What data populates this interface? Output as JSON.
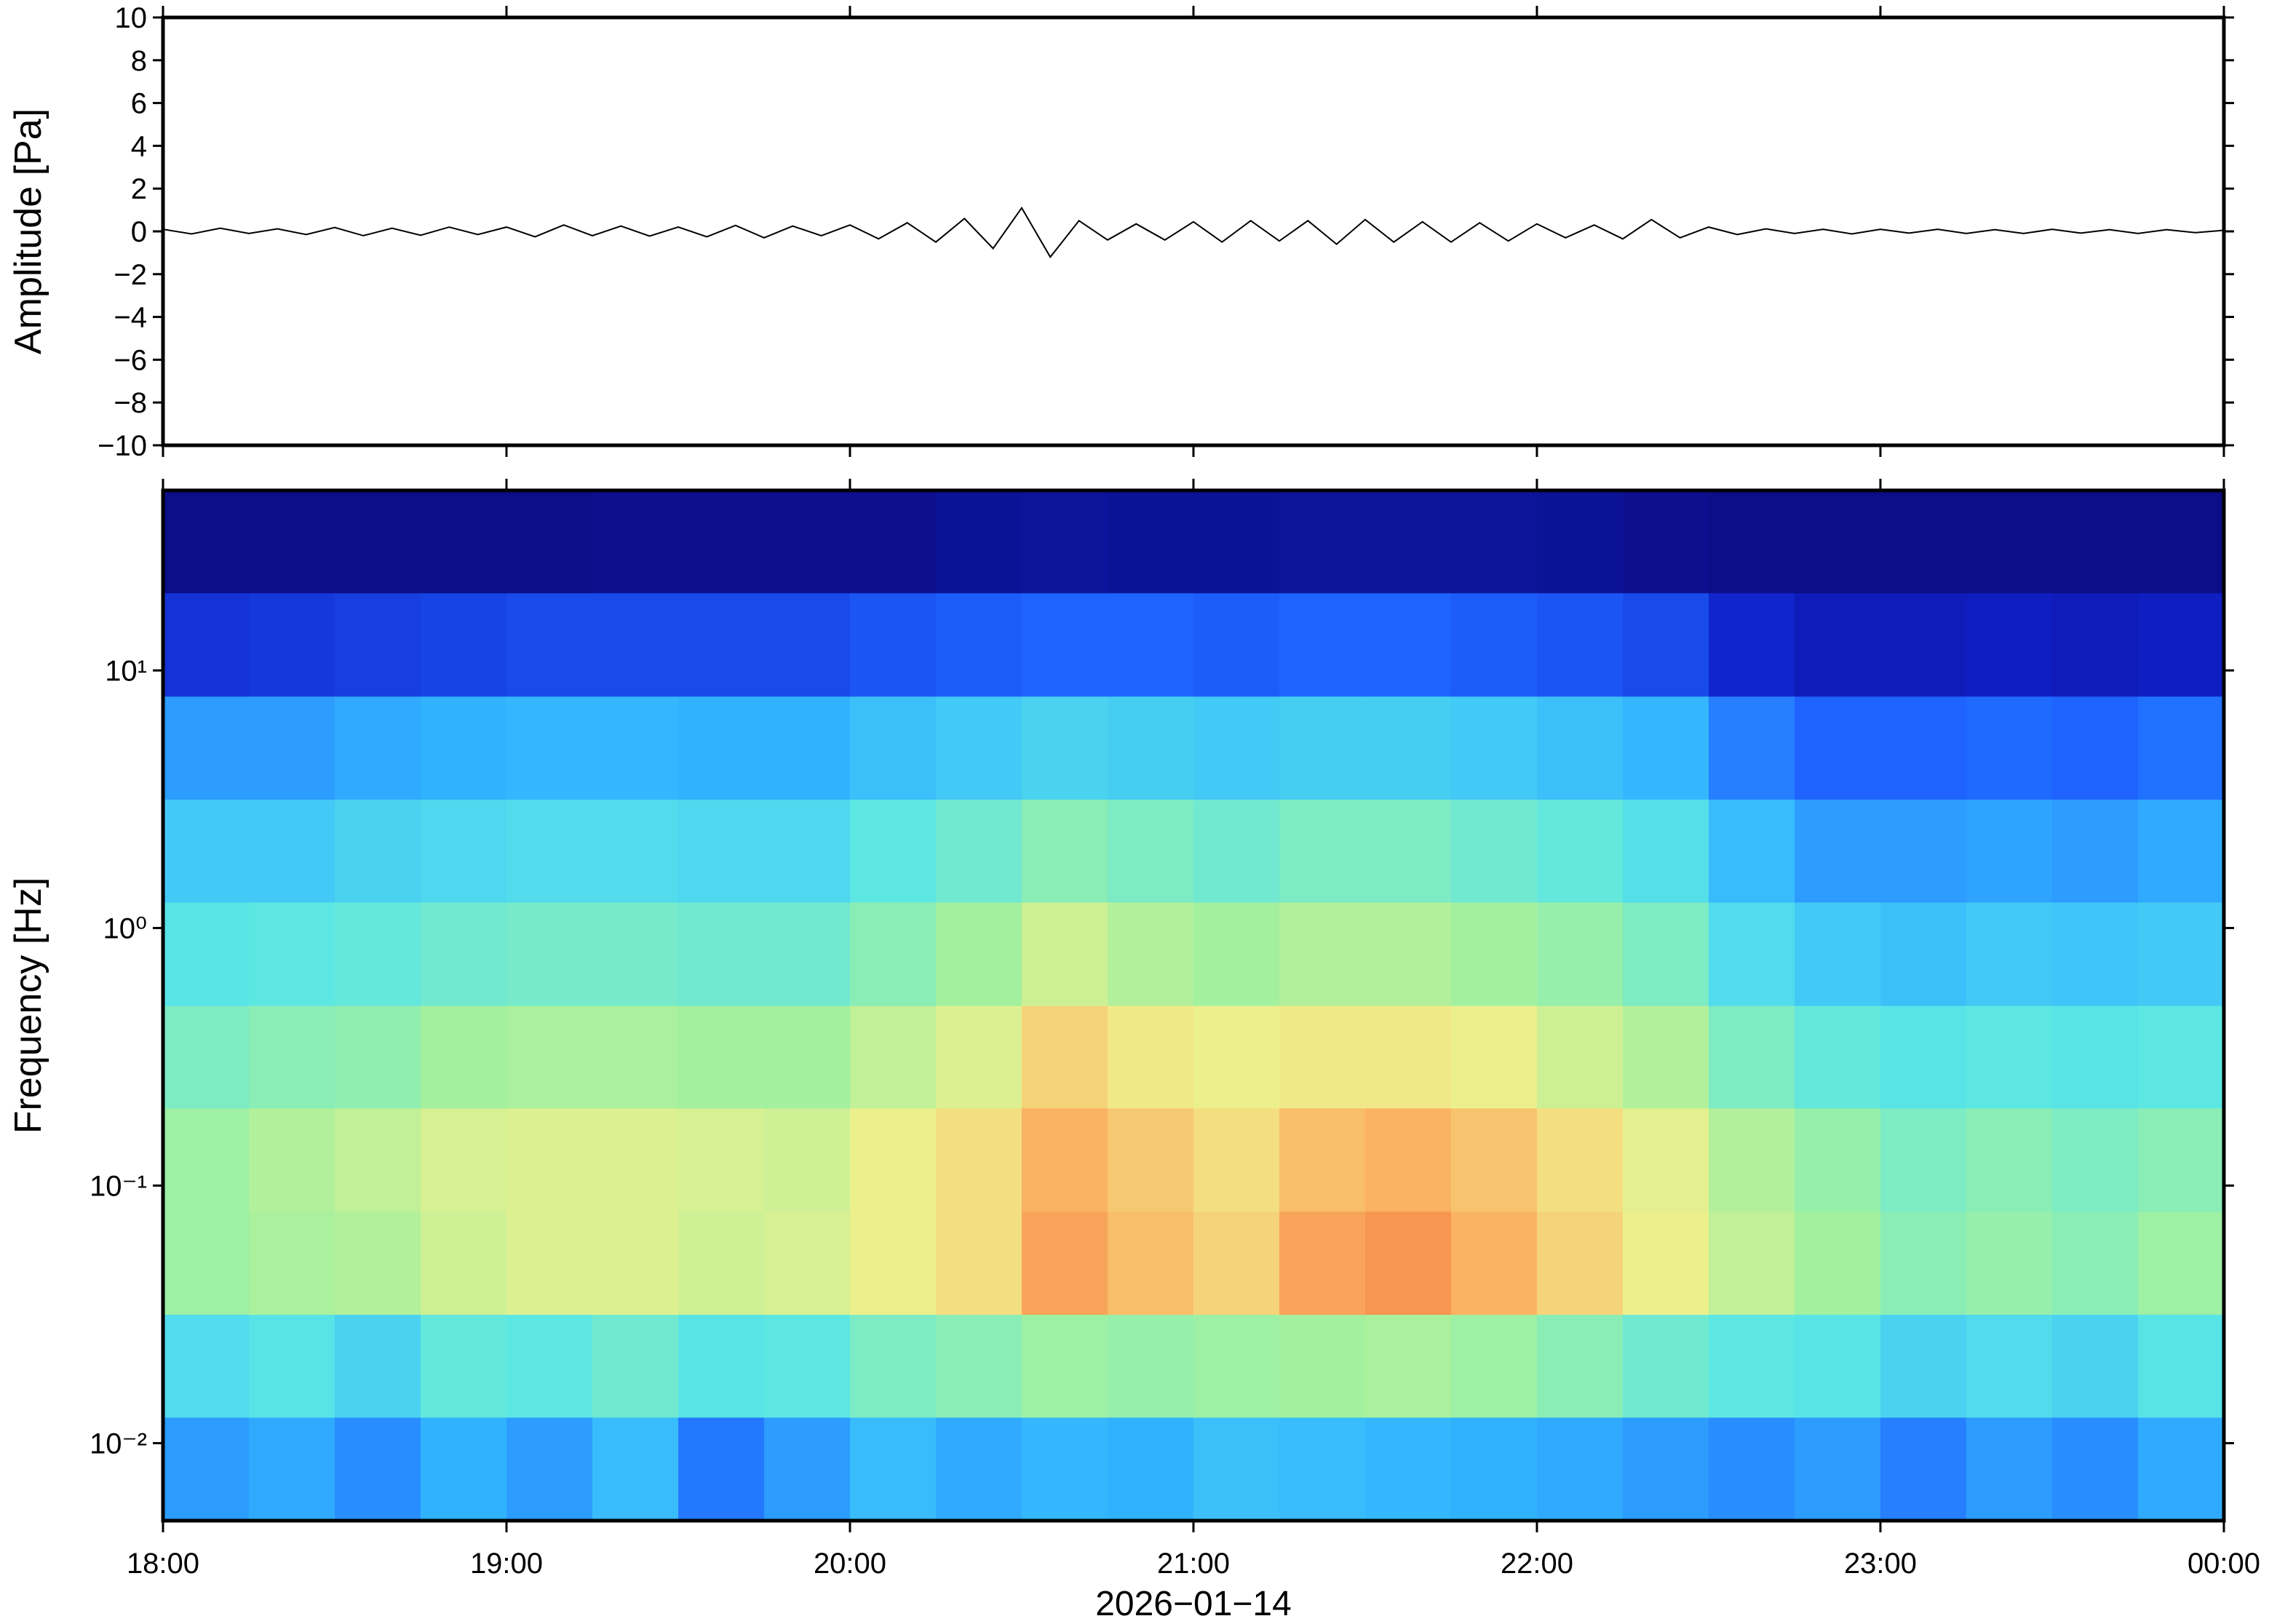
{
  "chart_data": [
    {
      "type": "line",
      "ylabel": "Amplitude [Pa]",
      "xlim": [
        0,
        360
      ],
      "xticks": [
        {
          "value": 0,
          "label": "18:00"
        },
        {
          "value": 60,
          "label": "19:00"
        },
        {
          "value": 120,
          "label": "20:00"
        },
        {
          "value": 180,
          "label": "21:00"
        },
        {
          "value": 240,
          "label": "22:00"
        },
        {
          "value": 300,
          "label": "23:00"
        },
        {
          "value": 360,
          "label": "00:00"
        }
      ],
      "ylim": [
        -10,
        10
      ],
      "yticks": [
        {
          "value": -10,
          "label": "−10"
        },
        {
          "value": -8,
          "label": "−8"
        },
        {
          "value": -6,
          "label": "−6"
        },
        {
          "value": -4,
          "label": "−4"
        },
        {
          "value": -2,
          "label": "−2"
        },
        0,
        2,
        4,
        6,
        8,
        10
      ],
      "x": [
        0,
        5,
        10,
        15,
        20,
        25,
        30,
        35,
        40,
        45,
        50,
        55,
        60,
        65,
        70,
        75,
        80,
        85,
        90,
        95,
        100,
        105,
        110,
        115,
        120,
        125,
        130,
        135,
        140,
        145,
        150,
        155,
        160,
        165,
        170,
        175,
        180,
        185,
        190,
        195,
        200,
        205,
        210,
        215,
        220,
        225,
        230,
        235,
        240,
        245,
        250,
        255,
        260,
        265,
        270,
        275,
        280,
        285,
        290,
        295,
        300,
        305,
        310,
        315,
        320,
        325,
        330,
        335,
        340,
        345,
        350,
        355,
        360
      ],
      "series": [
        {
          "color": "#000000",
          "values": [
            0.1,
            -0.12,
            0.15,
            -0.1,
            0.12,
            -0.15,
            0.18,
            -0.2,
            0.15,
            -0.18,
            0.2,
            -0.15,
            0.2,
            -0.25,
            0.3,
            -0.2,
            0.25,
            -0.22,
            0.2,
            -0.25,
            0.28,
            -0.3,
            0.25,
            -0.2,
            0.3,
            -0.35,
            0.4,
            -0.5,
            0.6,
            -0.8,
            1.1,
            -1.2,
            0.5,
            -0.4,
            0.35,
            -0.4,
            0.45,
            -0.5,
            0.5,
            -0.45,
            0.5,
            -0.6,
            0.55,
            -0.5,
            0.45,
            -0.5,
            0.4,
            -0.45,
            0.35,
            -0.3,
            0.3,
            -0.35,
            0.55,
            -0.3,
            0.2,
            -0.15,
            0.12,
            -0.1,
            0.1,
            -0.12,
            0.1,
            -0.08,
            0.1,
            -0.1,
            0.08,
            -0.1,
            0.1,
            -0.08,
            0.08,
            -0.1,
            0.08,
            -0.06,
            0.05
          ]
        }
      ]
    },
    {
      "type": "heatmap",
      "ylabel": "Frequency [Hz]",
      "xlabel": "2026−01−14",
      "xlim": [
        0,
        360
      ],
      "xticks": [
        {
          "value": 0,
          "label": "18:00"
        },
        {
          "value": 60,
          "label": "19:00"
        },
        {
          "value": 120,
          "label": "20:00"
        },
        {
          "value": 180,
          "label": "21:00"
        },
        {
          "value": 240,
          "label": "22:00"
        },
        {
          "value": 300,
          "label": "23:00"
        },
        {
          "value": 360,
          "label": "00:00"
        }
      ],
      "ylim": [
        0.005,
        50
      ],
      "log_y": true,
      "yticks": [
        {
          "value": 0.01,
          "label": "10⁻²"
        },
        {
          "value": 0.1,
          "label": "10⁻¹"
        },
        {
          "value": 1,
          "label": "10⁰"
        },
        {
          "value": 10,
          "label": "10¹"
        }
      ],
      "x_bins": [
        0,
        15,
        30,
        45,
        60,
        75,
        90,
        105,
        120,
        135,
        150,
        165,
        180,
        195,
        210,
        225,
        240,
        255,
        270,
        285,
        300,
        315,
        330,
        345,
        360
      ],
      "y_bins": [
        0.005,
        0.0126,
        0.0316,
        0.0794,
        0.2,
        0.5,
        1.26,
        3.16,
        7.94,
        20,
        50
      ],
      "zlim": [
        0,
        100
      ],
      "colormap": [
        "#0a0a78",
        "#1020c8",
        "#1e64ff",
        "#32b4ff",
        "#5ae6e6",
        "#a0f0a0",
        "#f0f08c",
        "#fab464",
        "#f06432",
        "#b41e1e"
      ],
      "z": [
        [
          30,
          32,
          28,
          33,
          30,
          35,
          25,
          30,
          35,
          32,
          34,
          33,
          36,
          35,
          34,
          33,
          32,
          30,
          28,
          30,
          26,
          30,
          28,
          32
        ],
        [
          42,
          44,
          40,
          46,
          45,
          48,
          44,
          45,
          50,
          52,
          55,
          54,
          55,
          56,
          57,
          55,
          52,
          48,
          45,
          44,
          40,
          42,
          40,
          44
        ],
        [
          55,
          57,
          58,
          62,
          64,
          64,
          62,
          63,
          66,
          70,
          80,
          76,
          72,
          80,
          82,
          78,
          72,
          66,
          60,
          56,
          52,
          54,
          52,
          55
        ],
        [
          55,
          58,
          60,
          63,
          64,
          64,
          63,
          62,
          66,
          70,
          78,
          74,
          70,
          76,
          78,
          75,
          70,
          65,
          58,
          54,
          50,
          52,
          50,
          52
        ],
        [
          50,
          52,
          53,
          56,
          57,
          57,
          56,
          56,
          60,
          64,
          72,
          68,
          66,
          68,
          68,
          66,
          62,
          58,
          50,
          46,
          44,
          45,
          44,
          45
        ],
        [
          44,
          45,
          46,
          48,
          49,
          49,
          48,
          48,
          52,
          56,
          62,
          58,
          56,
          58,
          58,
          56,
          54,
          50,
          42,
          38,
          36,
          38,
          37,
          38
        ],
        [
          38,
          38,
          40,
          41,
          42,
          42,
          41,
          41,
          45,
          48,
          52,
          50,
          48,
          50,
          50,
          48,
          46,
          43,
          35,
          30,
          30,
          31,
          30,
          32
        ],
        [
          30,
          30,
          32,
          33,
          34,
          34,
          33,
          33,
          36,
          38,
          40,
          39,
          38,
          39,
          39,
          38,
          36,
          34,
          26,
          22,
          22,
          23,
          22,
          24
        ],
        [
          14,
          15,
          16,
          17,
          18,
          18,
          18,
          18,
          20,
          21,
          22,
          22,
          21,
          22,
          22,
          21,
          20,
          18,
          12,
          9,
          9,
          10,
          9,
          10
        ],
        [
          2,
          2,
          2,
          2,
          2,
          3,
          3,
          3,
          3,
          4,
          5,
          4,
          4,
          5,
          5,
          5,
          4,
          3,
          2,
          2,
          2,
          2,
          2,
          2
        ]
      ]
    }
  ]
}
